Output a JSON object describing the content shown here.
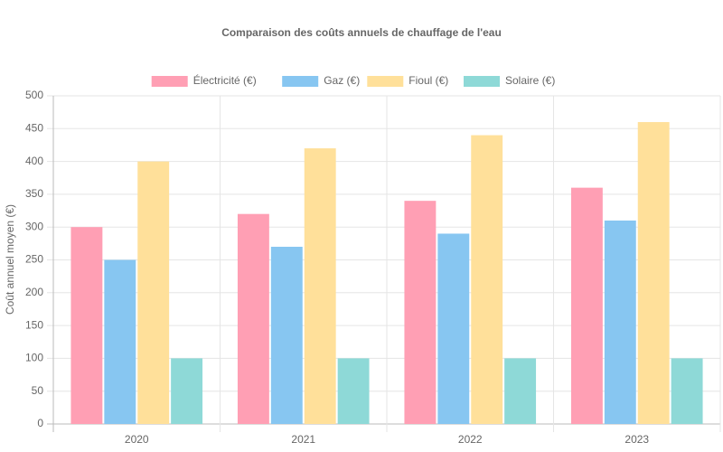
{
  "chart_data": {
    "type": "bar",
    "title": "Comparaison des coûts annuels de chauffage de l'eau",
    "y_label": "Coût annuel moyen (€)",
    "categories": [
      "2020",
      "2021",
      "2022",
      "2023"
    ],
    "series": [
      {
        "name": "Électricité (€)",
        "color": "#ff9fb4",
        "values": [
          300,
          320,
          340,
          360
        ]
      },
      {
        "name": "Gaz (€)",
        "color": "#87c6f1",
        "values": [
          250,
          270,
          290,
          310
        ]
      },
      {
        "name": "Fioul (€)",
        "color": "#ffe09a",
        "values": [
          400,
          420,
          440,
          460
        ]
      },
      {
        "name": "Solaire (€)",
        "color": "#8ed9d7",
        "values": [
          100,
          100,
          100,
          100
        ]
      }
    ],
    "ylim": [
      0,
      500
    ],
    "yticks": [
      0,
      50,
      100,
      150,
      200,
      250,
      300,
      350,
      400,
      450,
      500
    ],
    "grid": true,
    "legend": "top"
  }
}
